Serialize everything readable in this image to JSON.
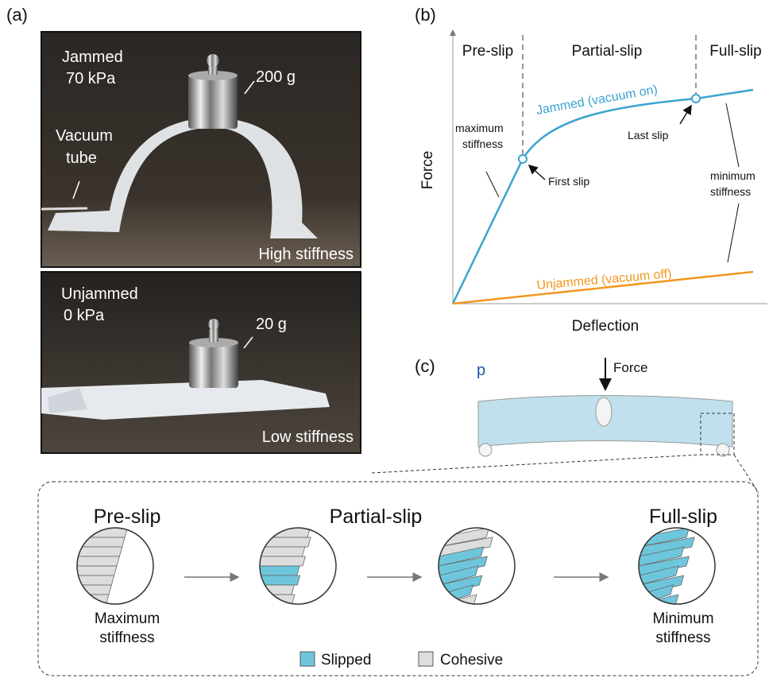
{
  "panel_a": {
    "label": "(a)",
    "top": {
      "state": "Jammed",
      "pressure": "70 kPa",
      "weight": "200 g",
      "tube": [
        "Vacuum",
        "tube"
      ],
      "stiffness": "High stiffness"
    },
    "bottom": {
      "state": "Unjammed",
      "pressure": "0 kPa",
      "weight": "20 g",
      "stiffness": "Low stiffness"
    }
  },
  "panel_b": {
    "label": "(b)",
    "regions": [
      "Pre-slip",
      "Partial-slip",
      "Full-slip"
    ],
    "y_label": "Force",
    "x_label": "Deflection",
    "curves": [
      "Jammed (vacuum on)",
      "Unjammed (vacuum off)"
    ],
    "annotations": {
      "max_stiffness": [
        "maximum",
        "stiffness"
      ],
      "first_slip": "First slip",
      "last_slip": "Last slip",
      "min_stiffness": [
        "minimum",
        "stiffness"
      ]
    }
  },
  "panel_c": {
    "label": "(c)",
    "pressure": "p",
    "force": "Force",
    "stages": [
      {
        "title": "Pre-slip",
        "caption": [
          "Maximum",
          "stiffness"
        ]
      },
      {
        "title": "Partial-slip"
      },
      {
        "title": "Full-slip",
        "caption": [
          "Minimum",
          "stiffness"
        ]
      }
    ],
    "legend": [
      "Slipped",
      "Cohesive"
    ]
  }
}
